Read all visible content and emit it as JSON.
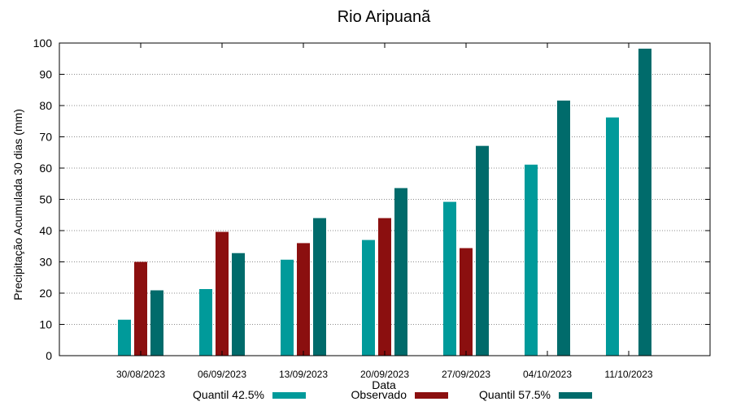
{
  "chart_data": {
    "type": "bar",
    "title": "Rio Aripuanã",
    "xlabel": "Data",
    "ylabel": "Precipitação Acumulada 30 dias (mm)",
    "ylim": [
      0,
      100
    ],
    "yticks": [
      0,
      10,
      20,
      30,
      40,
      50,
      60,
      70,
      80,
      90,
      100
    ],
    "grid": true,
    "legend_position": "bottom",
    "categories": [
      "30/08/2023",
      "06/09/2023",
      "13/09/2023",
      "20/09/2023",
      "27/09/2023",
      "04/10/2023",
      "11/10/2023"
    ],
    "series": [
      {
        "name": "Quantil 42.5%",
        "color": "#009a9a",
        "values": [
          11.5,
          21.3,
          30.7,
          37.0,
          49.2,
          61.1,
          76.2
        ]
      },
      {
        "name": "Observado",
        "color": "#8b0f0f",
        "values": [
          30.0,
          39.6,
          36.0,
          44.0,
          34.4,
          null,
          null
        ]
      },
      {
        "name": "Quantil 57.5%",
        "color": "#006b6b",
        "values": [
          20.9,
          32.8,
          44.0,
          53.6,
          67.1,
          81.6,
          98.2
        ]
      }
    ]
  }
}
